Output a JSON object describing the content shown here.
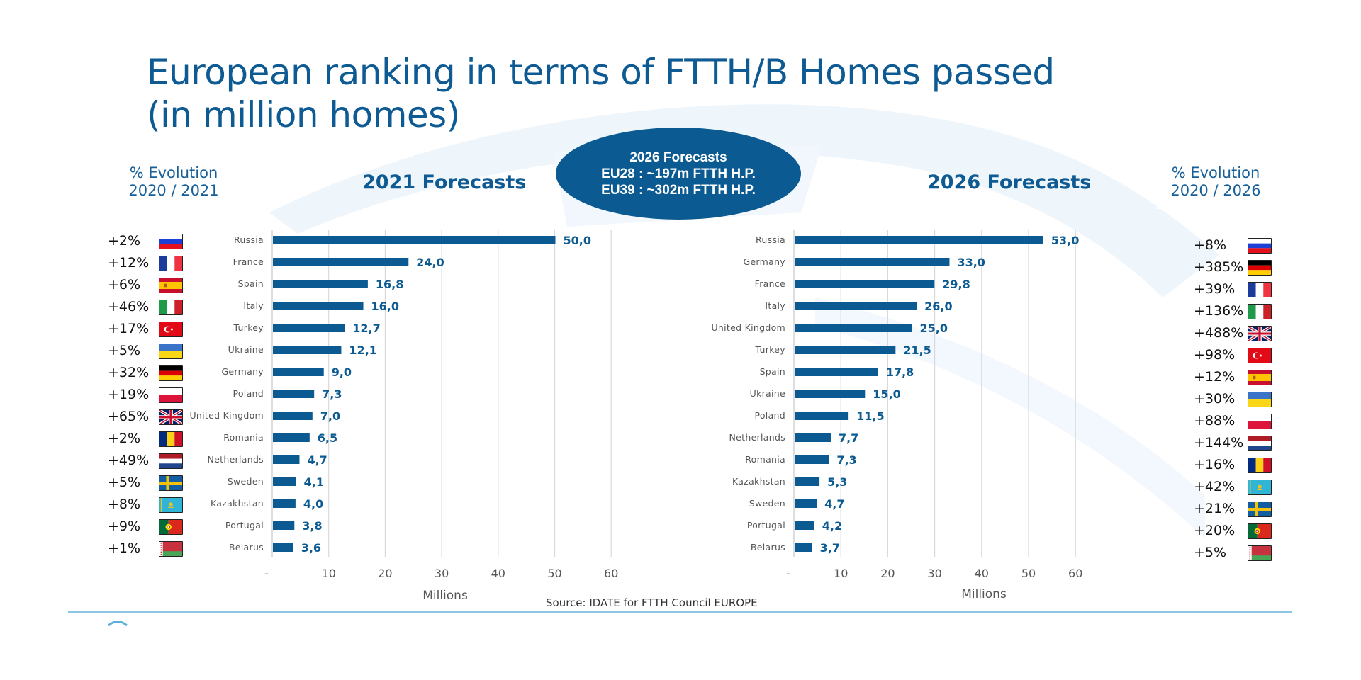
{
  "title": {
    "line1": "European ranking in terms of FTTH/B Homes passed",
    "line2": "(in million homes)"
  },
  "oval": {
    "line1": "2026 Forecasts",
    "line2": "EU28 : ~197m FTTH H.P.",
    "line3": "EU39 : ~302m FTTH H.P."
  },
  "left_evolution": {
    "header_line1": "% Evolution",
    "header_line2": "2020 / 2021",
    "items": [
      {
        "pct": "+2%",
        "flag": "russia-flag"
      },
      {
        "pct": "+12%",
        "flag": "france-flag"
      },
      {
        "pct": "+6%",
        "flag": "spain-flag"
      },
      {
        "pct": "+46%",
        "flag": "italy-flag"
      },
      {
        "pct": "+17%",
        "flag": "turkey-flag"
      },
      {
        "pct": "+5%",
        "flag": "ukraine-flag"
      },
      {
        "pct": "+32%",
        "flag": "germany-flag"
      },
      {
        "pct": "+19%",
        "flag": "poland-flag"
      },
      {
        "pct": "+65%",
        "flag": "uk-flag"
      },
      {
        "pct": "+2%",
        "flag": "romania-flag"
      },
      {
        "pct": "+49%",
        "flag": "netherlands-flag"
      },
      {
        "pct": "+5%",
        "flag": "sweden-flag"
      },
      {
        "pct": "+8%",
        "flag": "kazakhstan-flag"
      },
      {
        "pct": "+9%",
        "flag": "portugal-flag"
      },
      {
        "pct": "+1%",
        "flag": "belarus-flag"
      }
    ]
  },
  "right_evolution": {
    "header_line1": "% Evolution",
    "header_line2": "2020 / 2026",
    "items": [
      {
        "pct": "+8%",
        "flag": "russia-flag"
      },
      {
        "pct": "+385%",
        "flag": "germany-flag"
      },
      {
        "pct": "+39%",
        "flag": "france-flag"
      },
      {
        "pct": "+136%",
        "flag": "italy-flag"
      },
      {
        "pct": "+488%",
        "flag": "uk-flag"
      },
      {
        "pct": "+98%",
        "flag": "turkey-flag"
      },
      {
        "pct": "+12%",
        "flag": "spain-flag"
      },
      {
        "pct": "+30%",
        "flag": "ukraine-flag"
      },
      {
        "pct": "+88%",
        "flag": "poland-flag"
      },
      {
        "pct": "+144%",
        "flag": "netherlands-flag"
      },
      {
        "pct": "+16%",
        "flag": "romania-flag"
      },
      {
        "pct": "+42%",
        "flag": "kazakhstan-flag"
      },
      {
        "pct": "+21%",
        "flag": "sweden-flag"
      },
      {
        "pct": "+20%",
        "flag": "portugal-flag"
      },
      {
        "pct": "+5%",
        "flag": "belarus-flag"
      }
    ]
  },
  "source": "Source: IDATE for FTTH Council EUROPE",
  "colors": {
    "bar": "#0b5a91",
    "title": "#0e5a93",
    "grid": "#d9d9d9",
    "bottom_line": "#8cc6e2"
  },
  "chart_data": [
    {
      "type": "bar",
      "orientation": "horizontal",
      "title": "2021 Forecasts",
      "xlabel": "Millions",
      "ylabel": "",
      "xlim": [
        0,
        60
      ],
      "xticks": [
        "-",
        "10",
        "20",
        "30",
        "40",
        "50",
        "60"
      ],
      "grid": true,
      "categories": [
        "Russia",
        "France",
        "Spain",
        "Italy",
        "Turkey",
        "Ukraine",
        "Germany",
        "Poland",
        "United Kingdom",
        "Romania",
        "Netherlands",
        "Sweden",
        "Kazakhstan",
        "Portugal",
        "Belarus"
      ],
      "values": [
        50.0,
        24.0,
        16.8,
        16.0,
        12.7,
        12.1,
        9.0,
        7.3,
        7.0,
        6.5,
        4.7,
        4.1,
        4.0,
        3.8,
        3.6
      ],
      "labels": [
        "50,0",
        "24,0",
        "16,8",
        "16,0",
        "12,7",
        "12,1",
        "9,0",
        "7,3",
        "7,0",
        "6,5",
        "4,7",
        "4,1",
        "4,0",
        "3,8",
        "3,6"
      ]
    },
    {
      "type": "bar",
      "orientation": "horizontal",
      "title": "2026 Forecasts",
      "xlabel": "Millions",
      "ylabel": "",
      "xlim": [
        0,
        60
      ],
      "xticks": [
        "-",
        "10",
        "20",
        "30",
        "40",
        "50",
        "60"
      ],
      "grid": true,
      "categories": [
        "Russia",
        "Germany",
        "France",
        "Italy",
        "United Kingdom",
        "Turkey",
        "Spain",
        "Ukraine",
        "Poland",
        "Netherlands",
        "Romania",
        "Kazakhstan",
        "Sweden",
        "Portugal",
        "Belarus"
      ],
      "values": [
        53.0,
        33.0,
        29.8,
        26.0,
        25.0,
        21.5,
        17.8,
        15.0,
        11.5,
        7.7,
        7.3,
        5.3,
        4.7,
        4.2,
        3.7
      ],
      "labels": [
        "53,0",
        "33,0",
        "29,8",
        "26,0",
        "25,0",
        "21,5",
        "17,8",
        "15,0",
        "11,5",
        "7,7",
        "7,3",
        "5,3",
        "4,7",
        "4,2",
        "3,7"
      ]
    }
  ]
}
